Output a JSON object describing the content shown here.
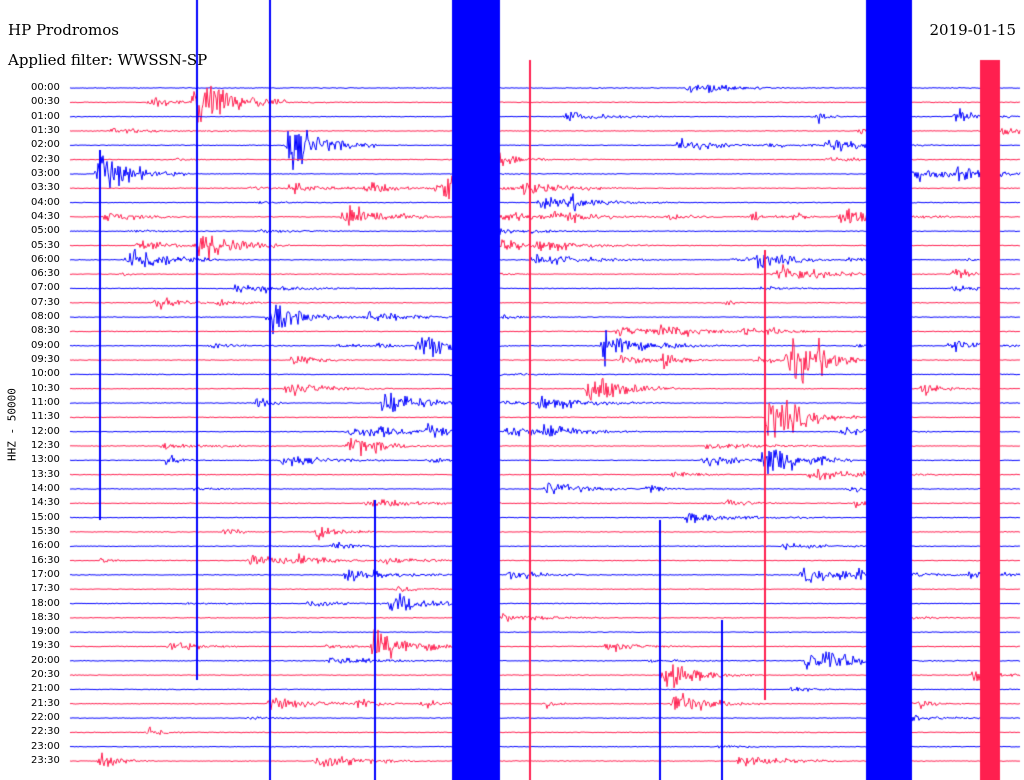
{
  "header": {
    "station": "HP Prodromos",
    "filter": "Applied filter: WWSSN-SP",
    "date": "2019-01-15"
  },
  "chart_data": {
    "type": "helicorder",
    "ylabel": "HHZ - 50000",
    "colors": {
      "odd": "#0000ff",
      "even": "#ff1f4f"
    },
    "time_labels": [
      "00:00",
      "00:30",
      "01:00",
      "01:30",
      "02:00",
      "02:30",
      "03:00",
      "03:30",
      "04:00",
      "04:30",
      "05:00",
      "05:30",
      "06:00",
      "06:30",
      "07:00",
      "07:30",
      "08:00",
      "08:30",
      "09:00",
      "09:30",
      "10:00",
      "10:30",
      "11:00",
      "11:30",
      "12:00",
      "12:30",
      "13:00",
      "13:30",
      "14:00",
      "14:30",
      "15:00",
      "15:30",
      "16:00",
      "16:30",
      "17:00",
      "17:30",
      "18:00",
      "18:30",
      "19:00",
      "19:30",
      "20:00",
      "20:30",
      "21:00",
      "21:30",
      "22:00",
      "22:30",
      "23:00",
      "23:30"
    ]
  }
}
